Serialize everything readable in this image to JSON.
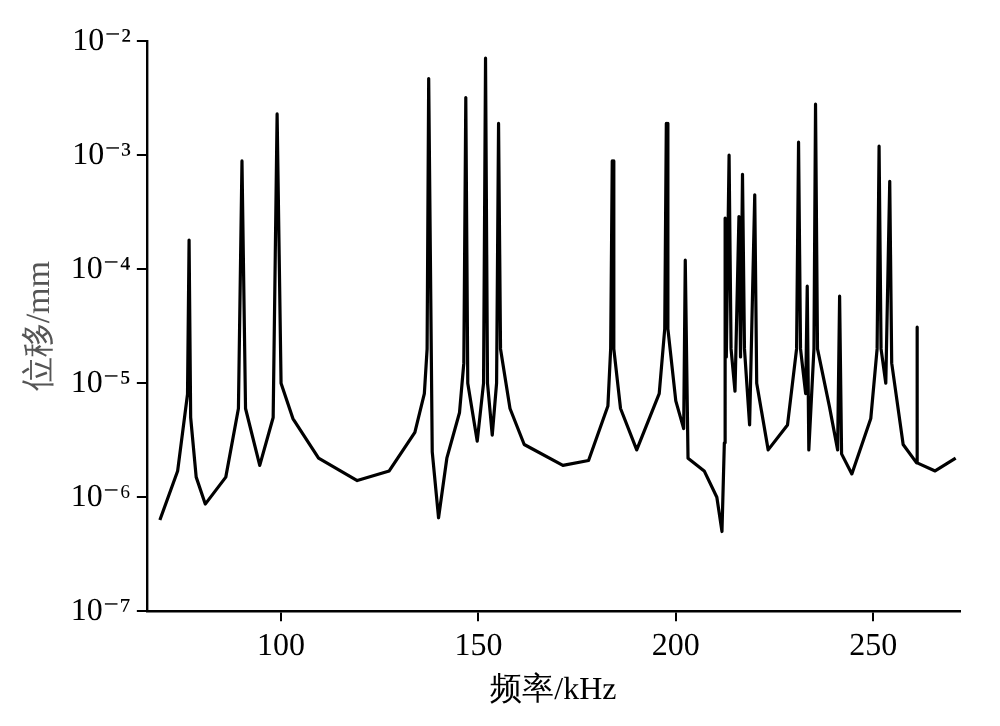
{
  "chart_data": {
    "type": "line",
    "xlabel": "频率/kHz",
    "ylabel": "位移/mm",
    "xlim": [
      66,
      272
    ],
    "xticks": [
      100,
      150,
      200,
      250
    ],
    "ylim": [
      1e-07,
      0.01
    ],
    "yticks": [
      {
        "value": 1e-07,
        "label": "10⁻⁷"
      },
      {
        "value": 1e-06,
        "label": "10⁻⁶"
      },
      {
        "value": 1e-05,
        "label": "10⁻⁵"
      },
      {
        "value": 0.0001,
        "label": "10⁻⁴"
      },
      {
        "value": 0.001,
        "label": "10⁻³"
      },
      {
        "value": 0.01,
        "label": "10⁻²"
      }
    ],
    "log": "y",
    "grid": false,
    "legend": false,
    "marker": "none",
    "line_style": "solid",
    "series": [
      {
        "color": "#000000",
        "x": [
          69.3,
          73.8,
          76.3,
          76.7,
          77.1,
          78.5,
          80.8,
          86,
          89.2,
          90.1,
          91,
          94.6,
          98,
          99.0,
          100,
          103,
          109.5,
          119.3,
          127.4,
          133.9,
          136.3,
          137.0,
          137.4,
          138.3,
          139.9,
          142,
          145.2,
          146.3,
          146.8,
          147.3,
          149.7,
          151.3,
          151.8,
          152.3,
          153.5,
          154.6,
          155.1,
          155.6,
          158,
          161.6,
          171.4,
          177.9,
          182.8,
          183.5,
          183.9,
          184.3,
          186,
          190.1,
          195.8,
          197.2,
          197.6,
          198,
          200,
          202.0,
          202.4,
          203.1,
          207.2,
          210.4,
          211.7,
          212.3,
          212.5,
          212.8,
          213.5,
          214.0,
          215.0,
          216.0,
          216.4,
          216.9,
          217.4,
          218.7,
          220.0,
          220.5,
          223.4,
          228.3,
          230.6,
          231.1,
          231.6,
          232.9,
          233.3,
          233.7,
          235.0,
          235.4,
          235.9,
          238.9,
          241.0,
          241.5,
          242.0,
          244.6,
          249.4,
          251.0,
          251.5,
          252.0,
          253.2,
          254.2,
          254.7,
          257.6,
          261.0,
          261.1,
          261.2,
          265.7,
          270.9
        ],
        "values": [
          6.3e-07,
          1.7e-06,
          8e-06,
          0.00018,
          5e-06,
          1.5e-06,
          8.7e-07,
          1.5e-06,
          6e-06,
          0.00089,
          6e-06,
          1.9e-06,
          5e-06,
          0.0023,
          1e-05,
          4.9e-06,
          2.2e-06,
          1.4e-06,
          1.7e-06,
          3.7e-06,
          8.1e-06,
          2e-05,
          0.0047,
          2.5e-06,
          6.6e-07,
          2.2e-06,
          5.5e-06,
          1.5e-05,
          0.0032,
          1e-05,
          3.1e-06,
          1e-05,
          0.0071,
          1e-05,
          3.5e-06,
          1e-05,
          0.0019,
          2e-05,
          6e-06,
          2.9e-06,
          1.9e-06,
          2.1e-06,
          6.3e-06,
          2e-05,
          0.00089,
          2e-05,
          6e-06,
          2.6e-06,
          8.1e-06,
          3e-05,
          0.0019,
          3e-05,
          7e-06,
          4e-06,
          0.00012,
          2.2e-06,
          1.7e-06,
          1e-06,
          5e-07,
          3e-06,
          0.00028,
          1.7e-05,
          0.001,
          2e-05,
          8.5e-06,
          0.00029,
          1.7e-05,
          0.00068,
          2e-05,
          4.3e-06,
          0.00045,
          1e-05,
          2.6e-06,
          4.3e-06,
          2e-05,
          0.0013,
          2e-05,
          8.1e-06,
          7.1e-05,
          2.6e-06,
          2e-05,
          0.0028,
          2e-05,
          6.3e-06,
          2.6e-06,
          5.8e-05,
          2.4e-06,
          1.6e-06,
          4.9e-06,
          2e-05,
          0.0012,
          2e-05,
          1e-05,
          0.00059,
          1.5e-05,
          2.9e-06,
          2e-06,
          3.1e-05,
          2e-06,
          1.7e-06,
          2.2e-06
        ]
      }
    ]
  }
}
